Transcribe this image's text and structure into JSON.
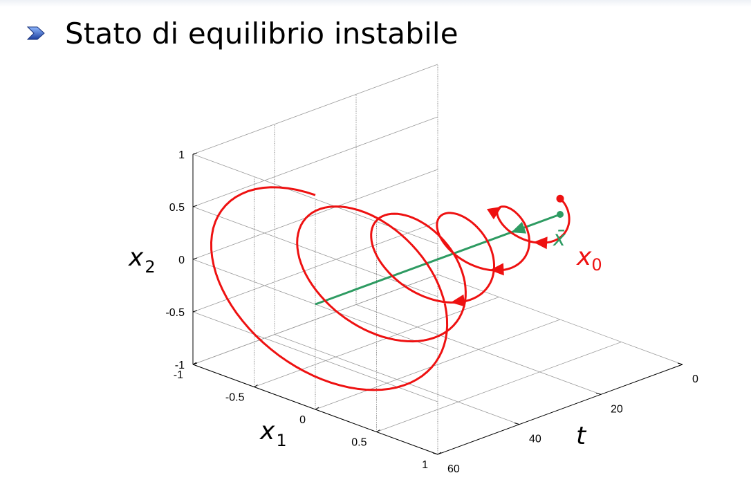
{
  "slide": {
    "title": "Stato di equilibrio instabile",
    "bullet_icon": "chevron-arrow-icon"
  },
  "chart_data": {
    "type": "line3d",
    "title": "",
    "axes": {
      "t": {
        "label": "t",
        "ticks": [
          0,
          20,
          40,
          60
        ],
        "lim": [
          0,
          60
        ]
      },
      "x1": {
        "label": "x",
        "label_sub": "1",
        "ticks": [
          -1,
          -0.5,
          0,
          0.5,
          1
        ],
        "tick_labels": [
          "-1",
          "-0.5",
          "0",
          "0.5",
          "1"
        ],
        "lim": [
          -1,
          1
        ]
      },
      "x2": {
        "label": "x",
        "label_sub": "2",
        "ticks": [
          -1,
          -0.5,
          0,
          0.5,
          1
        ],
        "tick_labels": [
          "-1",
          "-0.5",
          "0",
          "0.5",
          "1"
        ],
        "lim": [
          -1,
          1
        ]
      }
    },
    "grid": true,
    "series": [
      {
        "kind": "spiral-trajectory",
        "color": "#ee1111",
        "start": {
          "t": 0,
          "x1": 0,
          "x2": 0.15
        },
        "end_t": 60,
        "approx_model": "radius grows exponentially with t, about 5 turns",
        "points_label": "x",
        "points_label_sub": "0"
      },
      {
        "kind": "equilibrium-line",
        "color": "#2e9b62",
        "point": {
          "x1": 0,
          "x2": 0
        },
        "t_range": [
          0,
          60
        ],
        "points_label": "x̄"
      }
    ]
  }
}
